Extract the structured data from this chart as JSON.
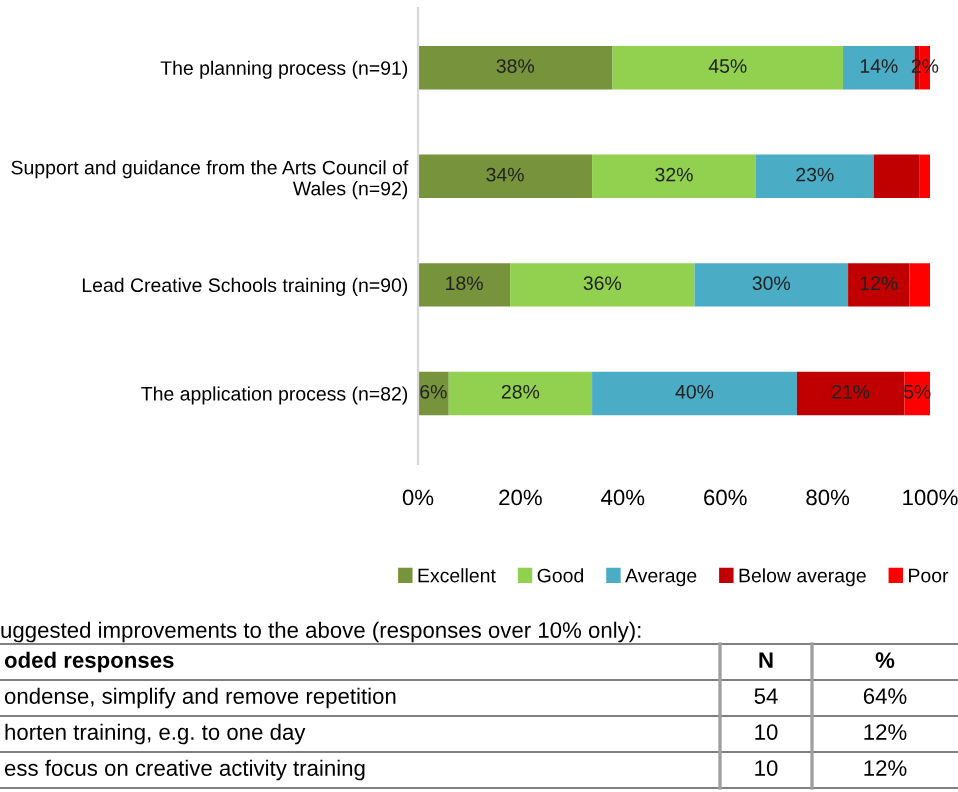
{
  "chart_data": {
    "type": "bar",
    "orientation": "horizontal",
    "stacked": true,
    "categories": [
      "The planning process (n=91)",
      "Support and guidance from the Arts Council of Wales (n=92)",
      "Lead Creative Schools training (n=90)",
      "The application process (n=82)"
    ],
    "series": [
      {
        "name": "Excellent",
        "color": "#77933c",
        "values": [
          38,
          34,
          18,
          6
        ],
        "value_labels": [
          "38%",
          "34%",
          "18%",
          "6%"
        ]
      },
      {
        "name": "Good",
        "color": "#92d050",
        "values": [
          45,
          32,
          36,
          28
        ],
        "value_labels": [
          "45%",
          "32%",
          "36%",
          "28%"
        ]
      },
      {
        "name": "Average",
        "color": "#4bacc6",
        "values": [
          14,
          23,
          30,
          40
        ],
        "value_labels": [
          "14%",
          "23%",
          "30%",
          "40%"
        ]
      },
      {
        "name": "Below average",
        "color": "#c00000",
        "values": [
          1,
          9,
          12,
          21
        ],
        "value_labels": [
          null,
          null,
          "12%",
          "21%"
        ]
      },
      {
        "name": "Poor",
        "color": "#ff0000",
        "values": [
          2,
          2,
          4,
          5
        ],
        "value_labels": [
          "2%",
          null,
          null,
          "5%"
        ]
      }
    ],
    "xlim": [
      0,
      100
    ],
    "xticks": [
      {
        "value": 0,
        "label": "0%"
      },
      {
        "value": 20,
        "label": "20%"
      },
      {
        "value": 40,
        "label": "40%"
      },
      {
        "value": 60,
        "label": "60%"
      },
      {
        "value": 80,
        "label": "80%"
      },
      {
        "value": 100,
        "label": "100%"
      }
    ],
    "grid": false,
    "legend": "bottom",
    "annotations": [
      "uggested improvements to the above (responses over 10% only):",
      "oded responses",
      "N",
      "%",
      "ondense, simplify and remove repetition",
      "54",
      "64%",
      "horten training, e.g. to one day",
      "10",
      "12%",
      "ess focus on creative activity training",
      "10",
      "12%"
    ]
  }
}
